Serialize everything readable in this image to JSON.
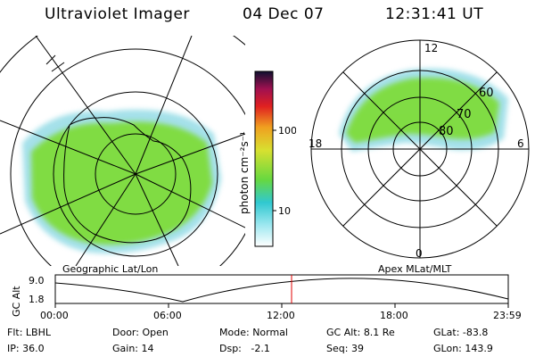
{
  "header": {
    "title": "Ultraviolet Imager",
    "date": "04 Dec 07",
    "time": "12:31:41 UT"
  },
  "colorbar": {
    "unit_label": "photon cm⁻²s⁻¹",
    "ticks": [
      "100",
      "10"
    ]
  },
  "polar": {
    "mlt_labels": [
      "12",
      "18",
      "6",
      "0"
    ],
    "mlat_labels": [
      "60",
      "70",
      "80"
    ]
  },
  "map_labels": {
    "left": "Geographic Lat/Lon",
    "right": "Apex MLat/MLT"
  },
  "altitude_plot": {
    "ylabel": "GC Alt",
    "yticks": [
      "9.0",
      "1.8"
    ],
    "xticks": [
      "00:00",
      "06:00",
      "12:00",
      "18:00",
      "23:59"
    ],
    "marker_time": "12:31"
  },
  "info": {
    "flt_label": "Flt:",
    "flt_value": "LBHL",
    "door_label": "Door:",
    "door_value": "Open",
    "mode_label": "Mode:",
    "mode_value": "Normal",
    "gcalt_label": "GC Alt:",
    "gcalt_value": "8.1 Re",
    "glat_label": "GLat:",
    "glat_value": "-83.8",
    "ip_label": "IP:",
    "ip_value": "36.0",
    "gain_label": "Gain:",
    "gain_value": "14",
    "dsp_label": "Dsp:",
    "dsp_value": "-2.1",
    "seq_label": "Seq:",
    "seq_value": "39",
    "glon_label": "GLon:",
    "glon_value": "143.9"
  },
  "colors": {
    "marker": "#e00000",
    "aurora": "#7fdc3a",
    "edge": "#5ac8d8"
  }
}
